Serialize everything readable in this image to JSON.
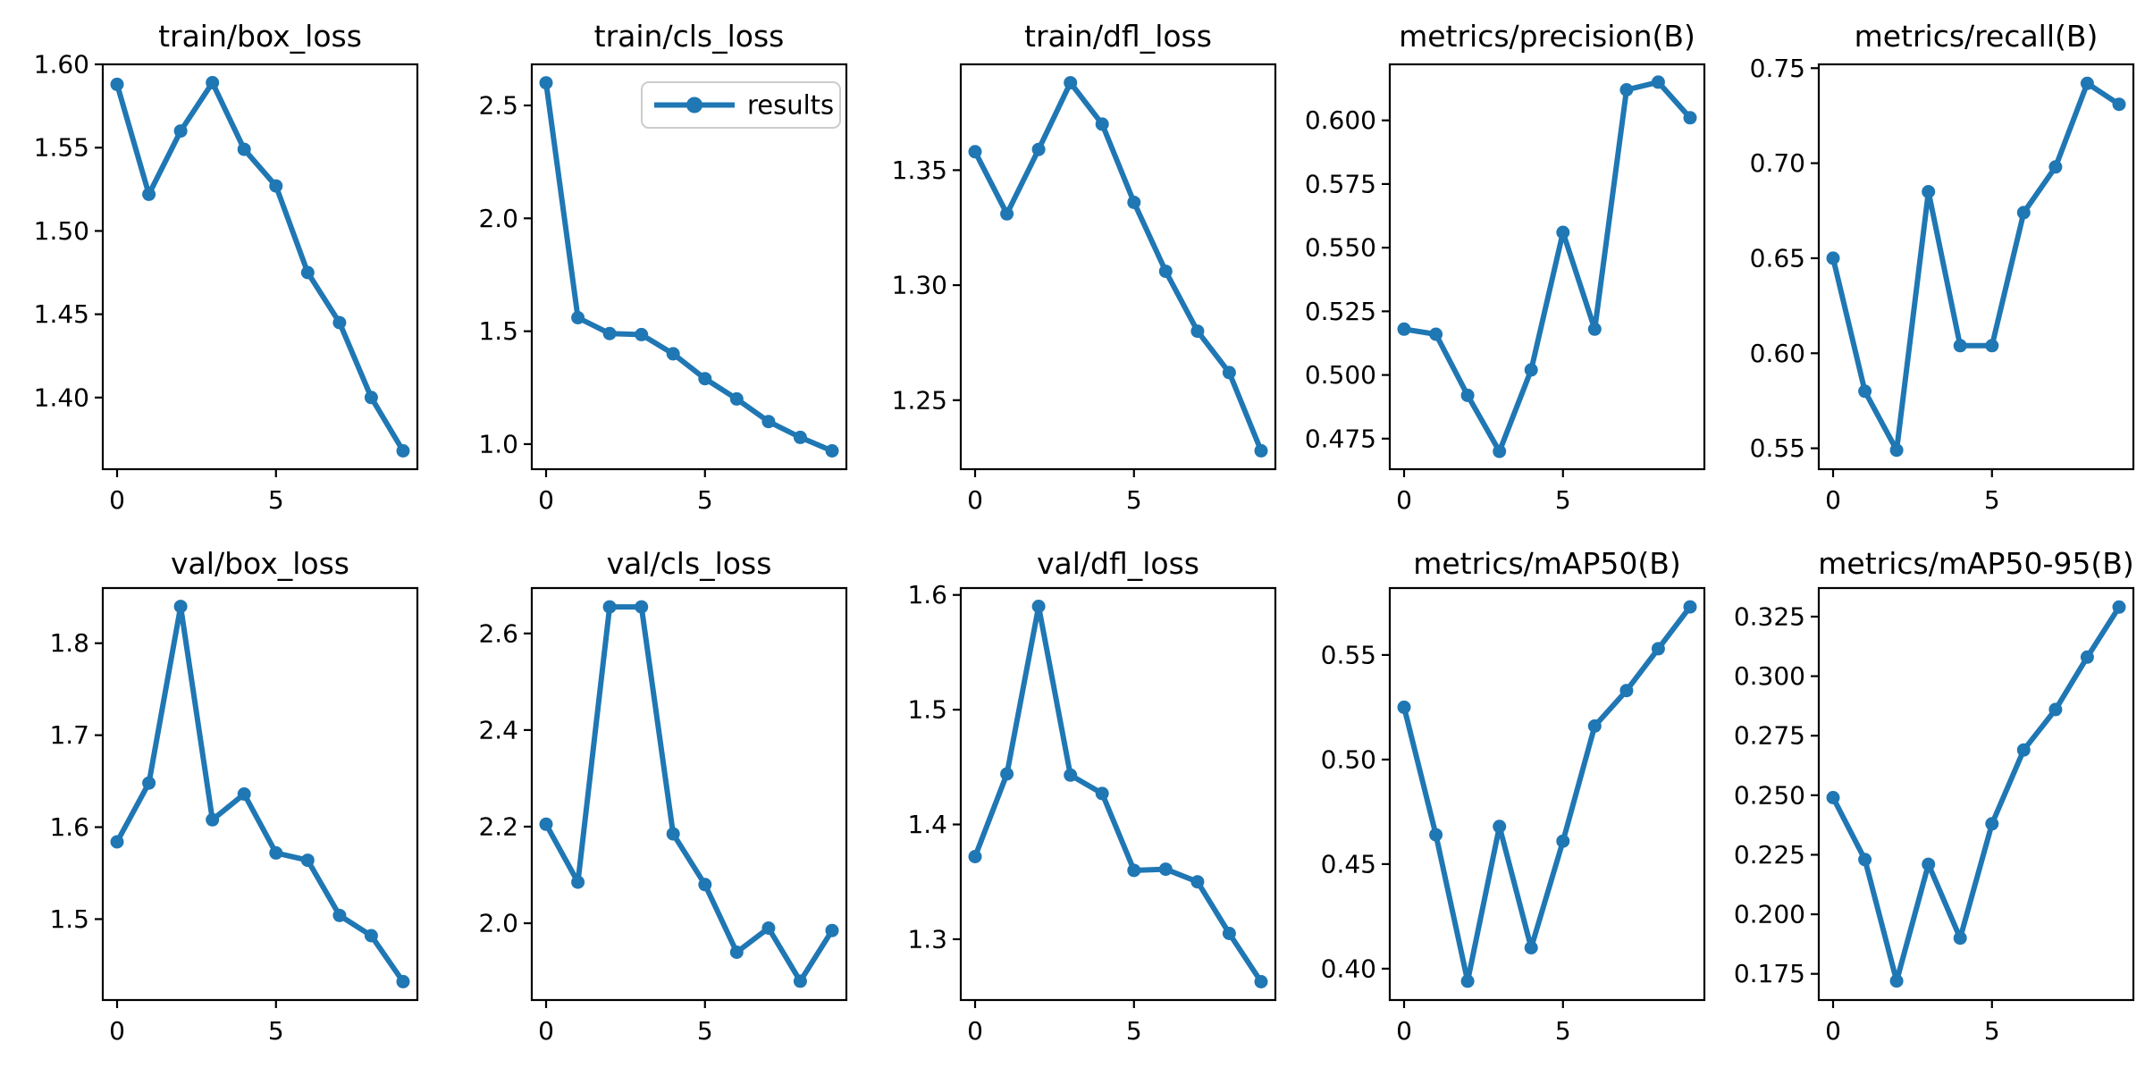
{
  "figure": {
    "background": "#ffffff",
    "line_color": "#1f77b4",
    "axis_color": "#000000",
    "legend": {
      "label": "results",
      "border_color": "#cccccc",
      "fill_color": "#ffffff"
    }
  },
  "chart_data": [
    {
      "type": "line",
      "title": "train/box_loss",
      "x": [
        0,
        1,
        2,
        3,
        4,
        5,
        6,
        7,
        8,
        9
      ],
      "values": [
        1.588,
        1.522,
        1.56,
        1.589,
        1.549,
        1.527,
        1.475,
        1.445,
        1.4,
        1.368
      ],
      "xlim": [
        -0.45,
        9.45
      ],
      "ylim": [
        1.357,
        1.6
      ],
      "x_ticks": [
        "0",
        "5"
      ],
      "y_ticks": [
        "1.40",
        "1.45",
        "1.50",
        "1.55",
        "1.60"
      ],
      "grid": false,
      "legend": false
    },
    {
      "type": "line",
      "title": "train/cls_loss",
      "x": [
        0,
        1,
        2,
        3,
        4,
        5,
        6,
        7,
        8,
        9
      ],
      "values": [
        2.6,
        1.56,
        1.49,
        1.485,
        1.4,
        1.29,
        1.2,
        1.1,
        1.03,
        0.97
      ],
      "xlim": [
        -0.45,
        9.45
      ],
      "ylim": [
        0.889,
        2.682
      ],
      "x_ticks": [
        "0",
        "5"
      ],
      "y_ticks": [
        "1.0",
        "1.5",
        "2.0",
        "2.5"
      ],
      "grid": false,
      "legend": true,
      "legend_position": "upper-right"
    },
    {
      "type": "line",
      "title": "train/dfl_loss",
      "x": [
        0,
        1,
        2,
        3,
        4,
        5,
        6,
        7,
        8,
        9
      ],
      "values": [
        1.358,
        1.331,
        1.359,
        1.388,
        1.37,
        1.336,
        1.306,
        1.28,
        1.262,
        1.228
      ],
      "xlim": [
        -0.45,
        9.45
      ],
      "ylim": [
        1.22,
        1.396
      ],
      "x_ticks": [
        "0",
        "5"
      ],
      "y_ticks": [
        "1.25",
        "1.30",
        "1.35"
      ],
      "grid": false,
      "legend": false
    },
    {
      "type": "line",
      "title": "metrics/precision(B)",
      "x": [
        0,
        1,
        2,
        3,
        4,
        5,
        6,
        7,
        8,
        9
      ],
      "values": [
        0.518,
        0.516,
        0.492,
        0.47,
        0.502,
        0.556,
        0.518,
        0.612,
        0.615,
        0.601
      ],
      "xlim": [
        -0.45,
        9.45
      ],
      "ylim": [
        0.463,
        0.622
      ],
      "x_ticks": [
        "0",
        "5"
      ],
      "y_ticks": [
        "0.475",
        "0.500",
        "0.525",
        "0.550",
        "0.575",
        "0.600"
      ],
      "grid": false,
      "legend": false
    },
    {
      "type": "line",
      "title": "metrics/recall(B)",
      "x": [
        0,
        1,
        2,
        3,
        4,
        5,
        6,
        7,
        8,
        9
      ],
      "values": [
        0.65,
        0.58,
        0.549,
        0.685,
        0.604,
        0.604,
        0.674,
        0.698,
        0.742,
        0.731
      ],
      "xlim": [
        -0.45,
        9.45
      ],
      "ylim": [
        0.539,
        0.752
      ],
      "x_ticks": [
        "0",
        "5"
      ],
      "y_ticks": [
        "0.55",
        "0.60",
        "0.65",
        "0.70",
        "0.75"
      ],
      "grid": false,
      "legend": false
    },
    {
      "type": "line",
      "title": "val/box_loss",
      "x": [
        0,
        1,
        2,
        3,
        4,
        5,
        6,
        7,
        8,
        9
      ],
      "values": [
        1.584,
        1.648,
        1.84,
        1.608,
        1.636,
        1.572,
        1.564,
        1.504,
        1.482,
        1.432
      ],
      "xlim": [
        -0.45,
        9.45
      ],
      "ylim": [
        1.412,
        1.86
      ],
      "x_ticks": [
        "0",
        "5"
      ],
      "y_ticks": [
        "1.5",
        "1.6",
        "1.7",
        "1.8"
      ],
      "grid": false,
      "legend": false
    },
    {
      "type": "line",
      "title": "val/cls_loss",
      "x": [
        0,
        1,
        2,
        3,
        4,
        5,
        6,
        7,
        8,
        9
      ],
      "values": [
        2.205,
        2.085,
        2.655,
        2.655,
        2.185,
        2.08,
        1.94,
        1.99,
        1.88,
        1.985
      ],
      "xlim": [
        -0.45,
        9.45
      ],
      "ylim": [
        1.841,
        2.694
      ],
      "x_ticks": [
        "0",
        "5"
      ],
      "y_ticks": [
        "2.0",
        "2.2",
        "2.4",
        "2.6"
      ],
      "grid": false,
      "legend": false
    },
    {
      "type": "line",
      "title": "val/dfl_loss",
      "x": [
        0,
        1,
        2,
        3,
        4,
        5,
        6,
        7,
        8,
        9
      ],
      "values": [
        1.372,
        1.444,
        1.59,
        1.443,
        1.427,
        1.36,
        1.361,
        1.35,
        1.305,
        1.263
      ],
      "xlim": [
        -0.45,
        9.45
      ],
      "ylim": [
        1.247,
        1.606
      ],
      "x_ticks": [
        "0",
        "5"
      ],
      "y_ticks": [
        "1.3",
        "1.4",
        "1.5",
        "1.6"
      ],
      "grid": false,
      "legend": false
    },
    {
      "type": "line",
      "title": "metrics/mAP50(B)",
      "x": [
        0,
        1,
        2,
        3,
        4,
        5,
        6,
        7,
        8,
        9
      ],
      "values": [
        0.525,
        0.464,
        0.394,
        0.468,
        0.41,
        0.461,
        0.516,
        0.533,
        0.553,
        0.573
      ],
      "xlim": [
        -0.45,
        9.45
      ],
      "ylim": [
        0.385,
        0.582
      ],
      "x_ticks": [
        "0",
        "5"
      ],
      "y_ticks": [
        "0.40",
        "0.45",
        "0.50",
        "0.55"
      ],
      "grid": false,
      "legend": false
    },
    {
      "type": "line",
      "title": "metrics/mAP50-95(B)",
      "x": [
        0,
        1,
        2,
        3,
        4,
        5,
        6,
        7,
        8,
        9
      ],
      "values": [
        0.249,
        0.223,
        0.172,
        0.221,
        0.19,
        0.238,
        0.269,
        0.286,
        0.308,
        0.329
      ],
      "xlim": [
        -0.45,
        9.45
      ],
      "ylim": [
        0.164,
        0.337
      ],
      "x_ticks": [
        "0",
        "5"
      ],
      "y_ticks": [
        "0.175",
        "0.200",
        "0.225",
        "0.250",
        "0.275",
        "0.300",
        "0.325"
      ],
      "grid": false,
      "legend": false
    }
  ]
}
